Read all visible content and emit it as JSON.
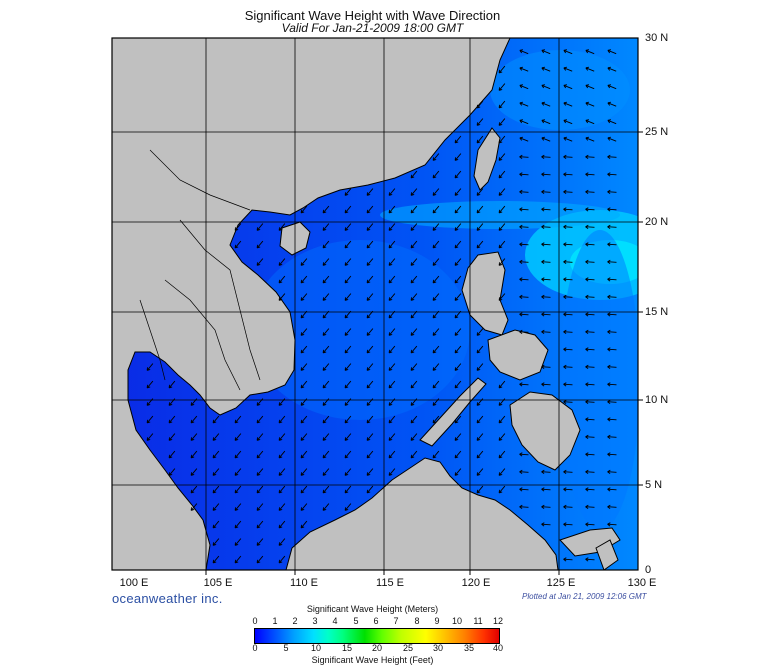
{
  "title": "Significant Wave Height with Wave Direction",
  "subtitle": "Valid For Jan-21-2009 18:00 GMT",
  "lon_labels": [
    "100 E",
    "105 E",
    "110 E",
    "115 E",
    "120 E",
    "125 E",
    "130 E"
  ],
  "lat_labels": [
    "30 N",
    "25 N",
    "20 N",
    "15 N",
    "10 N",
    "5 N",
    "0"
  ],
  "brand": "oceanweather inc.",
  "plotted": "Plotted at Jan 21, 2009 12:06 GMT",
  "legend": {
    "title_m": "Significant Wave Height (Meters)",
    "title_ft": "Significant Wave Height (Feet)",
    "meters": [
      "0",
      "1",
      "2",
      "3",
      "4",
      "5",
      "6",
      "7",
      "8",
      "9",
      "10",
      "11",
      "12"
    ],
    "feet": [
      "0",
      "5",
      "10",
      "15",
      "20",
      "25",
      "30",
      "35",
      "40"
    ]
  },
  "colors": {
    "land": "#c0c0c0",
    "water_deep": "#0000ff",
    "water_high": "#00f0ff",
    "arrow": "#000000"
  }
}
